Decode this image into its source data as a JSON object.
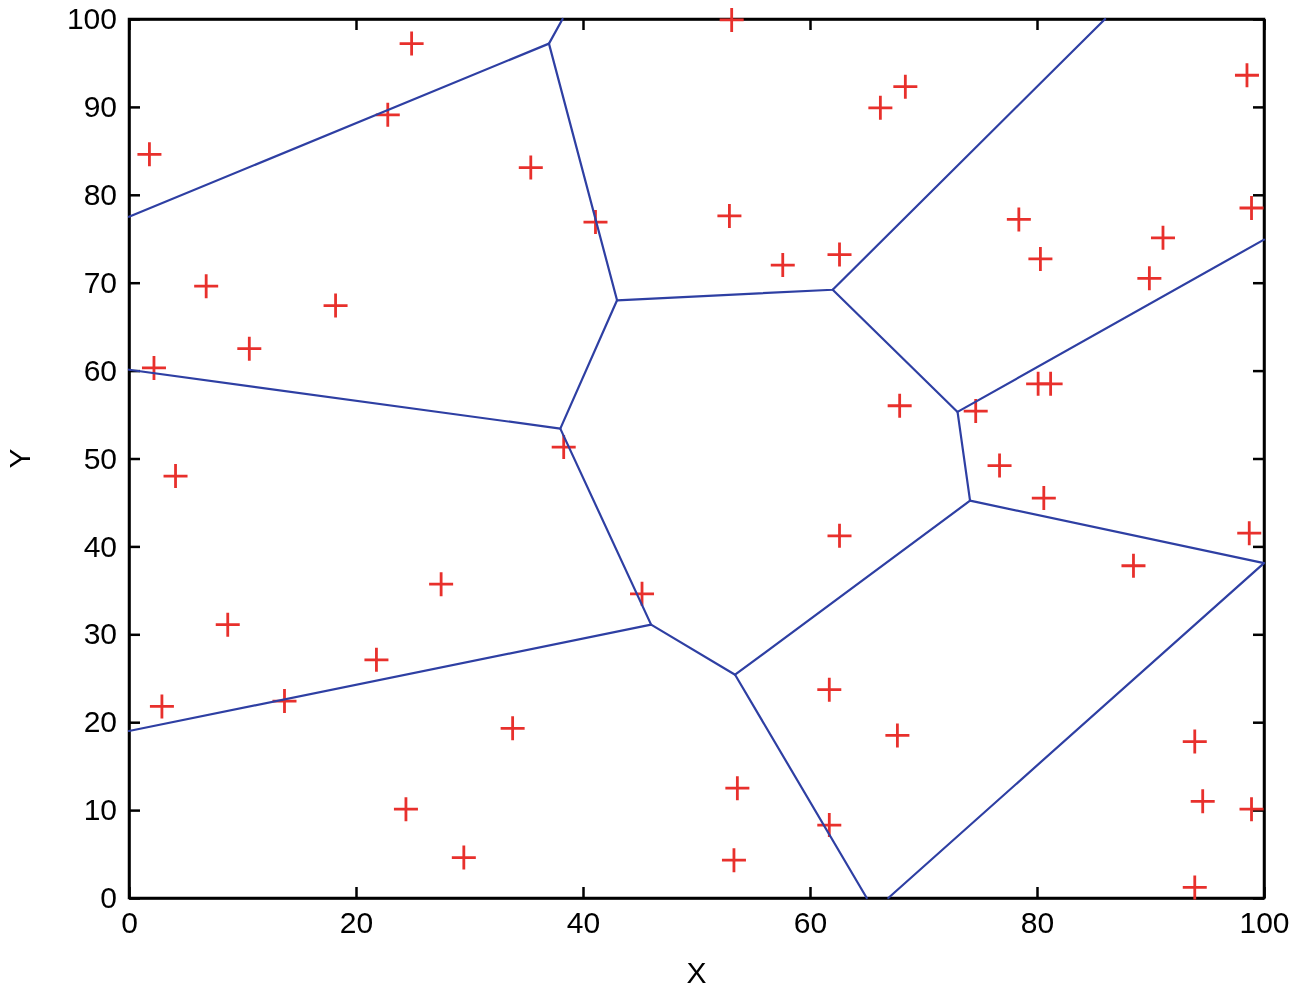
{
  "chart_data": {
    "type": "scatter",
    "xlabel": "X",
    "ylabel": "Y",
    "xlim": [
      0,
      100
    ],
    "xticks": [
      0,
      20,
      40,
      60,
      80,
      100
    ],
    "ylim": [
      0,
      100
    ],
    "yticks": [
      0,
      10,
      20,
      30,
      40,
      50,
      60,
      70,
      80,
      90,
      100
    ],
    "series": [
      {
        "color": "#e8302c",
        "marker": "cross",
        "x": [
          1.8,
          24.9,
          22.8,
          35.4,
          41.1,
          6.8,
          18.2,
          10.6,
          2.2,
          4.1,
          38.3,
          27.5,
          8.7,
          21.8,
          2.9,
          13.7,
          33.8,
          24.4,
          29.5,
          45.2,
          53.1,
          52.9,
          57.6,
          62.6,
          66.2,
          68.4,
          98.5,
          78.4,
          91.1,
          80.3,
          89.9,
          98.9,
          80.1,
          81.2,
          74.6,
          67.9,
          76.7,
          80.6,
          98.7,
          88.5,
          62.6,
          61.7,
          67.7,
          53.6,
          61.7,
          53.3,
          93.9,
          94.6,
          98.9,
          93.9
        ],
        "values": [
          84.6,
          97.2,
          89.1,
          83.1,
          76.9,
          69.6,
          67.4,
          62.5,
          60.3,
          48.0,
          51.3,
          35.7,
          31.1,
          27.1,
          21.8,
          22.4,
          19.3,
          10.1,
          4.6,
          34.6,
          99.9,
          77.6,
          72.0,
          73.2,
          89.9,
          92.3,
          93.6,
          77.2,
          75.1,
          72.7,
          70.5,
          78.5,
          58.5,
          58.5,
          55.4,
          56.0,
          49.2,
          45.5,
          41.5,
          37.8,
          41.2,
          23.7,
          18.5,
          12.5,
          8.3,
          4.3,
          17.8,
          11.0,
          10.1,
          1.2
        ]
      },
      {
        "type": "line",
        "color": "#2e3fa3",
        "x": [
          0,
          37.0,
          38.2
        ],
        "values": [
          77.5,
          97.2,
          100
        ]
      },
      {
        "type": "line",
        "color": "#2e3fa3",
        "x": [
          37.0,
          43.0,
          62.0,
          86.0
        ],
        "values": [
          97.2,
          68.0,
          69.2,
          100
        ]
      },
      {
        "type": "line",
        "color": "#2e3fa3",
        "x": [
          62.0,
          73.0,
          100
        ],
        "values": [
          69.2,
          55.3,
          74.9
        ]
      },
      {
        "type": "line",
        "color": "#2e3fa3",
        "x": [
          73.0,
          74.1,
          100,
          66.9
        ],
        "values": [
          55.3,
          45.2,
          38.1,
          0
        ]
      },
      {
        "type": "line",
        "color": "#2e3fa3",
        "x": [
          74.1,
          53.4,
          65.0
        ],
        "values": [
          45.2,
          25.4,
          0
        ]
      },
      {
        "type": "line",
        "color": "#2e3fa3",
        "x": [
          53.4,
          46.0,
          0
        ],
        "values": [
          25.4,
          31.1,
          19.0
        ]
      },
      {
        "type": "line",
        "color": "#2e3fa3",
        "x": [
          46.0,
          38.0,
          43.0
        ],
        "values": [
          31.1,
          53.4,
          68.0
        ]
      },
      {
        "type": "line",
        "color": "#2e3fa3",
        "x": [
          38.0,
          0
        ],
        "values": [
          53.4,
          60.1
        ]
      }
    ]
  }
}
